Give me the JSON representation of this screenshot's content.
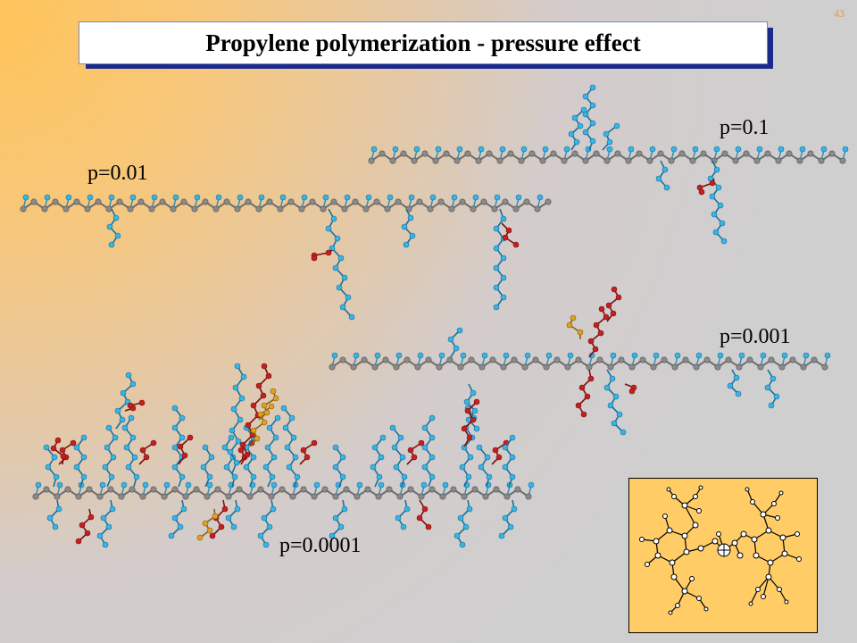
{
  "slide": {
    "page_number": "43",
    "title": "Propylene polymerization - pressure effect"
  },
  "labels": {
    "p01": "p=0.1",
    "p001": "p=0.01",
    "p0001": "p=0.001",
    "p00001": "p=0.0001"
  },
  "colors": {
    "backbone": "#8a8a8a",
    "methyl": "#35b6e6",
    "branch_red": "#c52020",
    "branch_orange": "#e0a020",
    "inset_bg": "#ffcc66",
    "title_shadow": "#1b2a8a"
  }
}
